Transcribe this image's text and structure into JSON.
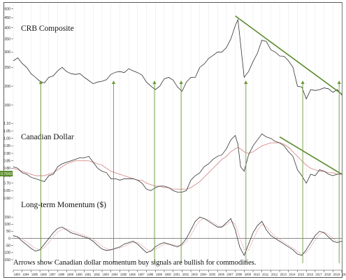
{
  "chart_data": {
    "type": "line",
    "x_range": [
      1983,
      2020
    ],
    "years": [
      "1983",
      "1984",
      "1985",
      "1986",
      "1987",
      "1988",
      "1989",
      "1990",
      "1991",
      "1992",
      "1993",
      "1994",
      "1995",
      "1996",
      "1997",
      "1998",
      "1999",
      "2000",
      "2001",
      "2002",
      "2003",
      "2004",
      "2005",
      "2006",
      "2007",
      "2008",
      "2009",
      "2010",
      "2011",
      "2012",
      "2013",
      "2014",
      "2015",
      "2016",
      "2017",
      "2018",
      "2019",
      "2020"
    ],
    "annotation": "Arrows show Canadian dollar momentum buy signals are bullish for commodities.",
    "buy_signal_years": [
      1986.1,
      1994.3,
      1998.9,
      2001.9,
      2009.2,
      2015.6,
      2019.7
    ],
    "colors": {
      "price": "#333333",
      "average": "#d98c8c",
      "trendline": "#5a8a2a",
      "arrow": "#6c9a3a",
      "marker": "#5a8c2a"
    },
    "panels": [
      {
        "name": "CRB Composite",
        "y_scale": "log",
        "ylim": [
          160,
          520
        ],
        "y_ticks": [
          {
            "value": 500,
            "label": "500"
          },
          {
            "value": 450,
            "label": "450"
          },
          {
            "value": 400,
            "label": "400"
          },
          {
            "value": 350,
            "label": "350"
          },
          {
            "value": 300,
            "label": "300"
          },
          {
            "value": 250,
            "label": "250"
          },
          {
            "value": 200,
            "label": "200"
          },
          {
            "value": 160,
            "label": "160"
          }
        ],
        "x": [
          1983.0,
          1983.5,
          1984.0,
          1984.5,
          1985.0,
          1985.5,
          1986.0,
          1986.5,
          1987.0,
          1987.5,
          1988.0,
          1988.5,
          1989.0,
          1989.5,
          1990.0,
          1990.5,
          1991.0,
          1991.5,
          1992.0,
          1992.5,
          1993.0,
          1993.5,
          1994.0,
          1994.5,
          1995.0,
          1995.5,
          1996.0,
          1996.5,
          1997.0,
          1997.5,
          1998.0,
          1998.5,
          1999.0,
          1999.5,
          2000.0,
          2000.5,
          2001.0,
          2001.5,
          2002.0,
          2002.5,
          2003.0,
          2003.5,
          2004.0,
          2004.5,
          2005.0,
          2005.5,
          2006.0,
          2006.5,
          2007.0,
          2007.5,
          2008.0,
          2008.3,
          2008.6,
          2009.0,
          2009.5,
          2010.0,
          2010.5,
          2011.0,
          2011.5,
          2012.0,
          2012.5,
          2013.0,
          2013.5,
          2014.0,
          2014.5,
          2015.0,
          2015.5,
          2016.0,
          2016.5,
          2017.0,
          2017.5,
          2018.0,
          2018.5,
          2019.0,
          2019.5,
          2020.0
        ],
        "values": [
          270,
          280,
          262,
          250,
          232,
          222,
          212,
          208,
          222,
          226,
          240,
          250,
          238,
          232,
          230,
          232,
          222,
          214,
          206,
          210,
          212,
          216,
          230,
          236,
          238,
          235,
          246,
          240,
          235,
          228,
          210,
          200,
          192,
          200,
          218,
          222,
          215,
          198,
          188,
          210,
          222,
          222,
          250,
          260,
          278,
          288,
          300,
          300,
          316,
          350,
          410,
          440,
          330,
          222,
          238,
          268,
          296,
          345,
          340,
          308,
          300,
          286,
          285,
          270,
          250,
          200,
          198,
          172,
          192,
          190,
          192,
          196,
          194,
          186,
          192,
          180
        ],
        "trendline": {
          "start": [
            2008.0,
            460
          ],
          "end": [
            2020.0,
            182
          ]
        }
      },
      {
        "name": "Canadian Dollar",
        "y_scale": "linear",
        "ylim": [
          0.6,
          1.13
        ],
        "y_ticks": [
          {
            "value": 1.1,
            "label": "1.10"
          },
          {
            "value": 1.05,
            "label": "1.05"
          },
          {
            "value": 1.0,
            "label": "1.00"
          },
          {
            "value": 0.95,
            "label": "0.95"
          },
          {
            "value": 0.9,
            "label": "0.90"
          },
          {
            "value": 0.85,
            "label": "0.85"
          },
          {
            "value": 0.8,
            "label": "0.80"
          },
          {
            "value": 0.75,
            "label": "0.75"
          },
          {
            "value": 0.7,
            "label": "0.70"
          },
          {
            "value": 0.65,
            "label": "0.65"
          },
          {
            "value": 0.6,
            "label": "0.60"
          }
        ],
        "current_value_label": "0.7643",
        "current_value": 0.7643,
        "x": [
          1983.0,
          1983.5,
          1984.0,
          1984.5,
          1985.0,
          1985.5,
          1986.0,
          1986.5,
          1987.0,
          1987.5,
          1988.0,
          1988.5,
          1989.0,
          1989.5,
          1990.0,
          1990.5,
          1991.0,
          1991.5,
          1992.0,
          1992.5,
          1993.0,
          1993.5,
          1994.0,
          1994.5,
          1995.0,
          1995.5,
          1996.0,
          1996.5,
          1997.0,
          1997.5,
          1998.0,
          1998.5,
          1999.0,
          1999.5,
          2000.0,
          2000.5,
          2001.0,
          2001.5,
          2002.0,
          2002.5,
          2003.0,
          2003.5,
          2004.0,
          2004.5,
          2005.0,
          2005.5,
          2006.0,
          2006.5,
          2007.0,
          2007.5,
          2008.0,
          2008.3,
          2008.6,
          2009.0,
          2009.5,
          2010.0,
          2010.5,
          2011.0,
          2011.5,
          2012.0,
          2012.5,
          2013.0,
          2013.5,
          2014.0,
          2014.5,
          2015.0,
          2015.5,
          2016.0,
          2016.5,
          2017.0,
          2017.5,
          2018.0,
          2018.5,
          2019.0,
          2019.5,
          2020.0
        ],
        "values": [
          0.81,
          0.8,
          0.77,
          0.76,
          0.74,
          0.73,
          0.72,
          0.71,
          0.75,
          0.76,
          0.81,
          0.83,
          0.84,
          0.85,
          0.86,
          0.87,
          0.87,
          0.88,
          0.84,
          0.8,
          0.78,
          0.77,
          0.73,
          0.73,
          0.72,
          0.73,
          0.73,
          0.73,
          0.72,
          0.7,
          0.66,
          0.65,
          0.67,
          0.68,
          0.68,
          0.67,
          0.65,
          0.64,
          0.64,
          0.65,
          0.72,
          0.75,
          0.77,
          0.81,
          0.83,
          0.86,
          0.88,
          0.89,
          0.93,
          0.99,
          1.02,
          0.96,
          0.81,
          0.78,
          0.89,
          0.95,
          0.99,
          1.03,
          1.01,
          1.0,
          0.98,
          0.97,
          0.95,
          0.91,
          0.88,
          0.79,
          0.75,
          0.7,
          0.76,
          0.75,
          0.79,
          0.78,
          0.76,
          0.75,
          0.76,
          0.7643
        ],
        "average": [
          0.8,
          0.79,
          0.78,
          0.77,
          0.76,
          0.75,
          0.75,
          0.75,
          0.76,
          0.77,
          0.79,
          0.81,
          0.83,
          0.84,
          0.85,
          0.85,
          0.85,
          0.85,
          0.84,
          0.83,
          0.82,
          0.8,
          0.78,
          0.77,
          0.76,
          0.75,
          0.74,
          0.73,
          0.72,
          0.72,
          0.7,
          0.69,
          0.68,
          0.68,
          0.67,
          0.67,
          0.66,
          0.66,
          0.66,
          0.66,
          0.67,
          0.69,
          0.71,
          0.74,
          0.77,
          0.8,
          0.83,
          0.86,
          0.88,
          0.91,
          0.93,
          0.94,
          0.93,
          0.91,
          0.9,
          0.91,
          0.93,
          0.95,
          0.96,
          0.97,
          0.97,
          0.97,
          0.96,
          0.94,
          0.91,
          0.88,
          0.85,
          0.82,
          0.8,
          0.79,
          0.78,
          0.78,
          0.77,
          0.77,
          0.76,
          0.76
        ],
        "trendline": {
          "start": [
            2013.0,
            1.01
          ],
          "end": [
            2020.0,
            0.76
          ]
        }
      },
      {
        "name": "Long-term Momentum ($)",
        "y_scale": "linear",
        "ylim": [
          -155,
          200
        ],
        "y_ticks": [
          {
            "value": 150,
            "label": "150"
          },
          {
            "value": 100,
            "label": "100"
          },
          {
            "value": 50,
            "label": "50"
          },
          {
            "value": 0,
            "label": "0"
          },
          {
            "value": -50,
            "label": "-50"
          },
          {
            "value": -100,
            "label": "-100"
          },
          {
            "value": -150,
            "label": "-150"
          }
        ],
        "x": [
          1983.0,
          1983.5,
          1984.0,
          1984.5,
          1985.0,
          1985.5,
          1986.0,
          1986.5,
          1987.0,
          1987.5,
          1988.0,
          1988.5,
          1989.0,
          1989.5,
          1990.0,
          1990.5,
          1991.0,
          1991.5,
          1992.0,
          1992.5,
          1993.0,
          1993.5,
          1994.0,
          1994.5,
          1995.0,
          1995.5,
          1996.0,
          1996.5,
          1997.0,
          1997.5,
          1998.0,
          1998.5,
          1999.0,
          1999.5,
          2000.0,
          2000.5,
          2001.0,
          2001.5,
          2002.0,
          2002.5,
          2003.0,
          2003.5,
          2004.0,
          2004.5,
          2005.0,
          2005.5,
          2006.0,
          2006.5,
          2007.0,
          2007.5,
          2008.0,
          2008.5,
          2009.0,
          2009.5,
          2010.0,
          2010.5,
          2011.0,
          2011.5,
          2012.0,
          2012.5,
          2013.0,
          2013.5,
          2014.0,
          2014.5,
          2015.0,
          2015.5,
          2016.0,
          2016.5,
          2017.0,
          2017.5,
          2018.0,
          2018.5,
          2019.0,
          2019.5,
          2020.0
        ],
        "values": [
          20,
          10,
          -20,
          -45,
          -70,
          -90,
          -80,
          -40,
          0,
          40,
          70,
          80,
          60,
          40,
          30,
          20,
          10,
          0,
          -20,
          -50,
          -75,
          -85,
          -80,
          -70,
          -60,
          -40,
          -30,
          -20,
          -40,
          -70,
          -100,
          -90,
          -60,
          -40,
          -30,
          -40,
          -50,
          -60,
          -40,
          0,
          60,
          120,
          150,
          140,
          120,
          100,
          80,
          80,
          110,
          140,
          60,
          -60,
          -120,
          -40,
          40,
          90,
          120,
          60,
          20,
          0,
          -20,
          -40,
          -60,
          -80,
          -110,
          -120,
          -80,
          -30,
          20,
          50,
          40,
          10,
          -20,
          -30,
          -20
        ],
        "signal": [
          15,
          12,
          -5,
          -25,
          -50,
          -70,
          -80,
          -65,
          -30,
          10,
          45,
          65,
          68,
          55,
          42,
          32,
          20,
          10,
          -5,
          -30,
          -55,
          -72,
          -80,
          -76,
          -68,
          -55,
          -40,
          -28,
          -30,
          -50,
          -75,
          -90,
          -78,
          -58,
          -42,
          -38,
          -44,
          -52,
          -50,
          -25,
          20,
          80,
          125,
          140,
          130,
          112,
          92,
          82,
          95,
          120,
          100,
          10,
          -80,
          -85,
          -10,
          55,
          100,
          85,
          45,
          15,
          -5,
          -28,
          -48,
          -68,
          -92,
          -112,
          -100,
          -60,
          -10,
          30,
          45,
          28,
          0,
          -20,
          -22
        ],
        "zero_line": 0
      }
    ]
  }
}
